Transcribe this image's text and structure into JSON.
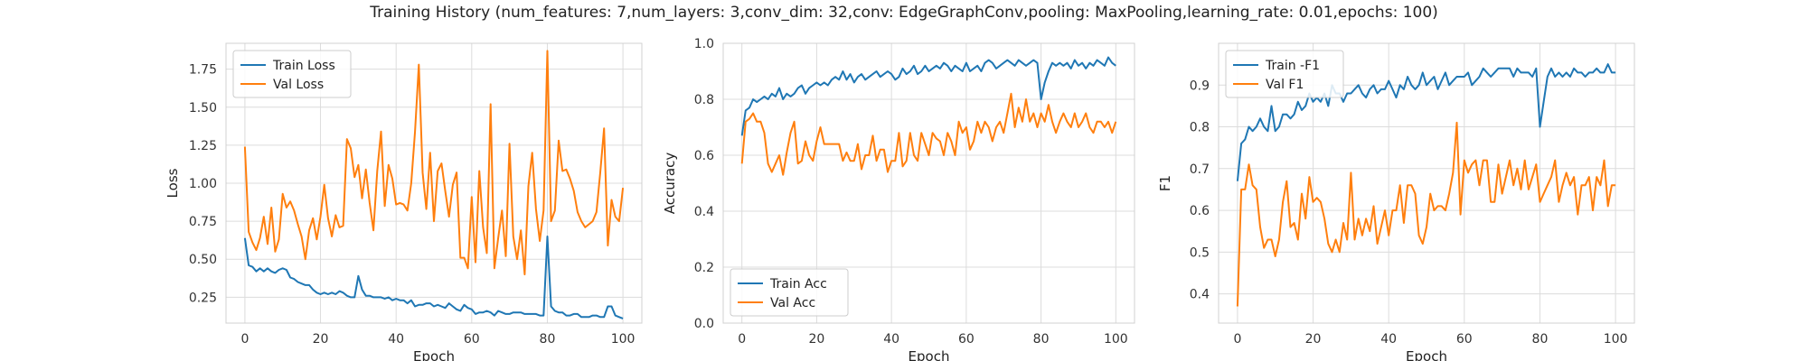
{
  "figure": {
    "title": "Training History (num_features: 7,num_layers: 3,conv_dim: 32,conv: EdgeGraphConv,pooling: MaxPooling,learning_rate: 0.01,epochs: 100)"
  },
  "colors": {
    "train": "#1f77b4",
    "val": "#ff7f0e",
    "grid": "#dcdcdc",
    "frame": "#d0d0d0"
  },
  "chart_data": [
    {
      "type": "line",
      "xlabel": "Epoch",
      "ylabel": "Loss",
      "xlim": [
        -5,
        105
      ],
      "ylim": [
        0.08,
        1.92
      ],
      "xticks": [
        0,
        20,
        40,
        60,
        80,
        100
      ],
      "yticks": [
        0.25,
        0.5,
        0.75,
        1.0,
        1.25,
        1.5,
        1.75
      ],
      "ytick_labels": [
        "0.25",
        "0.50",
        "0.75",
        "1.00",
        "1.25",
        "1.50",
        "1.75"
      ],
      "grid": true,
      "legend_position": "upper-left",
      "series": [
        {
          "name": "Train Loss",
          "color_key": "train",
          "values": [
            0.64,
            0.46,
            0.45,
            0.42,
            0.44,
            0.42,
            0.44,
            0.42,
            0.41,
            0.43,
            0.44,
            0.43,
            0.38,
            0.37,
            0.35,
            0.34,
            0.33,
            0.33,
            0.3,
            0.28,
            0.27,
            0.28,
            0.27,
            0.28,
            0.27,
            0.29,
            0.28,
            0.26,
            0.25,
            0.25,
            0.39,
            0.3,
            0.26,
            0.26,
            0.25,
            0.25,
            0.25,
            0.24,
            0.25,
            0.23,
            0.24,
            0.23,
            0.23,
            0.21,
            0.23,
            0.19,
            0.2,
            0.2,
            0.21,
            0.21,
            0.19,
            0.2,
            0.19,
            0.18,
            0.21,
            0.19,
            0.17,
            0.16,
            0.2,
            0.18,
            0.17,
            0.14,
            0.15,
            0.15,
            0.16,
            0.15,
            0.13,
            0.16,
            0.15,
            0.14,
            0.14,
            0.15,
            0.15,
            0.15,
            0.14,
            0.14,
            0.14,
            0.14,
            0.13,
            0.13,
            0.65,
            0.19,
            0.16,
            0.15,
            0.15,
            0.13,
            0.13,
            0.14,
            0.14,
            0.12,
            0.12,
            0.12,
            0.13,
            0.13,
            0.12,
            0.12,
            0.19,
            0.19,
            0.13,
            0.12,
            0.11
          ]
        },
        {
          "name": "Val Loss",
          "color_key": "val",
          "values": [
            1.24,
            0.68,
            0.61,
            0.56,
            0.64,
            0.78,
            0.6,
            0.84,
            0.55,
            0.63,
            0.93,
            0.84,
            0.88,
            0.82,
            0.73,
            0.65,
            0.5,
            0.69,
            0.77,
            0.63,
            0.78,
            0.99,
            0.77,
            0.65,
            0.79,
            0.71,
            0.72,
            1.29,
            1.23,
            1.04,
            1.12,
            0.9,
            1.09,
            0.87,
            0.69,
            1.08,
            1.34,
            0.85,
            1.12,
            1.03,
            0.86,
            0.87,
            0.86,
            0.82,
            1.0,
            1.34,
            1.78,
            1.07,
            0.83,
            1.2,
            0.75,
            1.08,
            1.13,
            0.95,
            0.78,
            0.99,
            1.07,
            0.51,
            0.51,
            0.44,
            0.91,
            0.48,
            1.08,
            0.71,
            0.54,
            1.52,
            0.44,
            0.64,
            0.82,
            0.52,
            1.26,
            0.65,
            0.5,
            0.69,
            0.4,
            0.98,
            1.2,
            0.83,
            0.62,
            0.82,
            1.87,
            0.75,
            0.82,
            1.28,
            1.08,
            1.09,
            1.03,
            0.95,
            0.81,
            0.75,
            0.71,
            0.73,
            0.75,
            0.81,
            1.07,
            1.36,
            0.59,
            0.89,
            0.78,
            0.75,
            0.97
          ]
        }
      ]
    },
    {
      "type": "line",
      "xlabel": "Epoch",
      "ylabel": "Accuracy",
      "xlim": [
        -5,
        105
      ],
      "ylim": [
        0.0,
        1.0
      ],
      "xticks": [
        0,
        20,
        40,
        60,
        80,
        100
      ],
      "yticks": [
        0.0,
        0.2,
        0.4,
        0.6,
        0.8,
        1.0
      ],
      "ytick_labels": [
        "0.0",
        "0.2",
        "0.4",
        "0.6",
        "0.8",
        "1.0"
      ],
      "grid": true,
      "legend_position": "lower-left",
      "series": [
        {
          "name": "Train Acc",
          "color_key": "train",
          "values": [
            0.67,
            0.76,
            0.77,
            0.8,
            0.79,
            0.8,
            0.81,
            0.8,
            0.82,
            0.81,
            0.84,
            0.8,
            0.82,
            0.81,
            0.82,
            0.84,
            0.85,
            0.82,
            0.84,
            0.85,
            0.86,
            0.85,
            0.86,
            0.85,
            0.87,
            0.88,
            0.87,
            0.9,
            0.87,
            0.89,
            0.86,
            0.88,
            0.89,
            0.87,
            0.88,
            0.89,
            0.9,
            0.88,
            0.89,
            0.9,
            0.89,
            0.87,
            0.88,
            0.91,
            0.89,
            0.9,
            0.92,
            0.89,
            0.9,
            0.92,
            0.9,
            0.91,
            0.92,
            0.91,
            0.93,
            0.92,
            0.9,
            0.92,
            0.91,
            0.9,
            0.93,
            0.9,
            0.91,
            0.92,
            0.9,
            0.93,
            0.94,
            0.93,
            0.91,
            0.92,
            0.93,
            0.94,
            0.93,
            0.92,
            0.94,
            0.93,
            0.92,
            0.93,
            0.94,
            0.93,
            0.8,
            0.86,
            0.9,
            0.93,
            0.92,
            0.93,
            0.92,
            0.93,
            0.91,
            0.94,
            0.92,
            0.93,
            0.91,
            0.93,
            0.92,
            0.94,
            0.93,
            0.92,
            0.95,
            0.93,
            0.92
          ]
        },
        {
          "name": "Val Acc",
          "color_key": "val",
          "values": [
            0.57,
            0.72,
            0.73,
            0.75,
            0.72,
            0.72,
            0.68,
            0.57,
            0.54,
            0.57,
            0.6,
            0.53,
            0.61,
            0.68,
            0.72,
            0.57,
            0.58,
            0.65,
            0.6,
            0.58,
            0.65,
            0.7,
            0.64,
            0.64,
            0.64,
            0.64,
            0.64,
            0.58,
            0.61,
            0.58,
            0.58,
            0.64,
            0.55,
            0.6,
            0.6,
            0.67,
            0.58,
            0.62,
            0.62,
            0.54,
            0.58,
            0.58,
            0.68,
            0.56,
            0.58,
            0.68,
            0.6,
            0.58,
            0.68,
            0.64,
            0.6,
            0.68,
            0.66,
            0.65,
            0.6,
            0.68,
            0.65,
            0.6,
            0.72,
            0.68,
            0.7,
            0.62,
            0.65,
            0.72,
            0.68,
            0.72,
            0.7,
            0.65,
            0.7,
            0.72,
            0.68,
            0.75,
            0.82,
            0.7,
            0.77,
            0.72,
            0.8,
            0.72,
            0.75,
            0.7,
            0.75,
            0.72,
            0.78,
            0.72,
            0.68,
            0.72,
            0.75,
            0.72,
            0.7,
            0.75,
            0.7,
            0.72,
            0.75,
            0.7,
            0.68,
            0.72,
            0.72,
            0.7,
            0.72,
            0.68,
            0.72
          ]
        }
      ]
    },
    {
      "type": "line",
      "xlabel": "Epoch",
      "ylabel": "F1",
      "xlim": [
        -5,
        105
      ],
      "ylim": [
        0.33,
        1.0
      ],
      "xticks": [
        0,
        20,
        40,
        60,
        80,
        100
      ],
      "yticks": [
        0.4,
        0.5,
        0.6,
        0.7,
        0.8,
        0.9
      ],
      "ytick_labels": [
        "0.4",
        "0.5",
        "0.6",
        "0.7",
        "0.8",
        "0.9"
      ],
      "grid": true,
      "legend_position": "upper-left",
      "series": [
        {
          "name": "Train -F1",
          "color_key": "train",
          "values": [
            0.67,
            0.76,
            0.77,
            0.8,
            0.79,
            0.8,
            0.82,
            0.8,
            0.79,
            0.85,
            0.79,
            0.8,
            0.83,
            0.83,
            0.82,
            0.83,
            0.86,
            0.84,
            0.85,
            0.88,
            0.86,
            0.87,
            0.86,
            0.88,
            0.85,
            0.9,
            0.88,
            0.88,
            0.86,
            0.88,
            0.88,
            0.89,
            0.9,
            0.88,
            0.87,
            0.89,
            0.9,
            0.88,
            0.89,
            0.89,
            0.91,
            0.89,
            0.87,
            0.9,
            0.89,
            0.92,
            0.9,
            0.89,
            0.9,
            0.93,
            0.9,
            0.91,
            0.92,
            0.89,
            0.91,
            0.93,
            0.9,
            0.91,
            0.92,
            0.92,
            0.92,
            0.93,
            0.9,
            0.91,
            0.92,
            0.94,
            0.93,
            0.92,
            0.93,
            0.94,
            0.94,
            0.94,
            0.94,
            0.92,
            0.94,
            0.93,
            0.93,
            0.93,
            0.92,
            0.94,
            0.8,
            0.86,
            0.92,
            0.94,
            0.92,
            0.93,
            0.92,
            0.93,
            0.92,
            0.94,
            0.93,
            0.93,
            0.92,
            0.93,
            0.93,
            0.94,
            0.93,
            0.93,
            0.95,
            0.93,
            0.93
          ]
        },
        {
          "name": "Val F1",
          "color_key": "val",
          "values": [
            0.37,
            0.65,
            0.65,
            0.71,
            0.66,
            0.65,
            0.56,
            0.51,
            0.53,
            0.53,
            0.49,
            0.53,
            0.62,
            0.67,
            0.56,
            0.57,
            0.53,
            0.64,
            0.58,
            0.68,
            0.62,
            0.63,
            0.62,
            0.58,
            0.52,
            0.5,
            0.53,
            0.5,
            0.57,
            0.53,
            0.69,
            0.53,
            0.58,
            0.54,
            0.58,
            0.55,
            0.61,
            0.52,
            0.56,
            0.6,
            0.54,
            0.6,
            0.6,
            0.66,
            0.57,
            0.66,
            0.66,
            0.64,
            0.54,
            0.52,
            0.56,
            0.64,
            0.6,
            0.61,
            0.61,
            0.6,
            0.64,
            0.69,
            0.81,
            0.59,
            0.72,
            0.69,
            0.71,
            0.72,
            0.66,
            0.72,
            0.72,
            0.62,
            0.62,
            0.71,
            0.64,
            0.68,
            0.72,
            0.66,
            0.7,
            0.65,
            0.72,
            0.65,
            0.68,
            0.71,
            0.62,
            0.64,
            0.66,
            0.68,
            0.72,
            0.62,
            0.66,
            0.69,
            0.66,
            0.68,
            0.59,
            0.66,
            0.66,
            0.68,
            0.6,
            0.68,
            0.66,
            0.72,
            0.61,
            0.66,
            0.66
          ]
        }
      ]
    }
  ]
}
